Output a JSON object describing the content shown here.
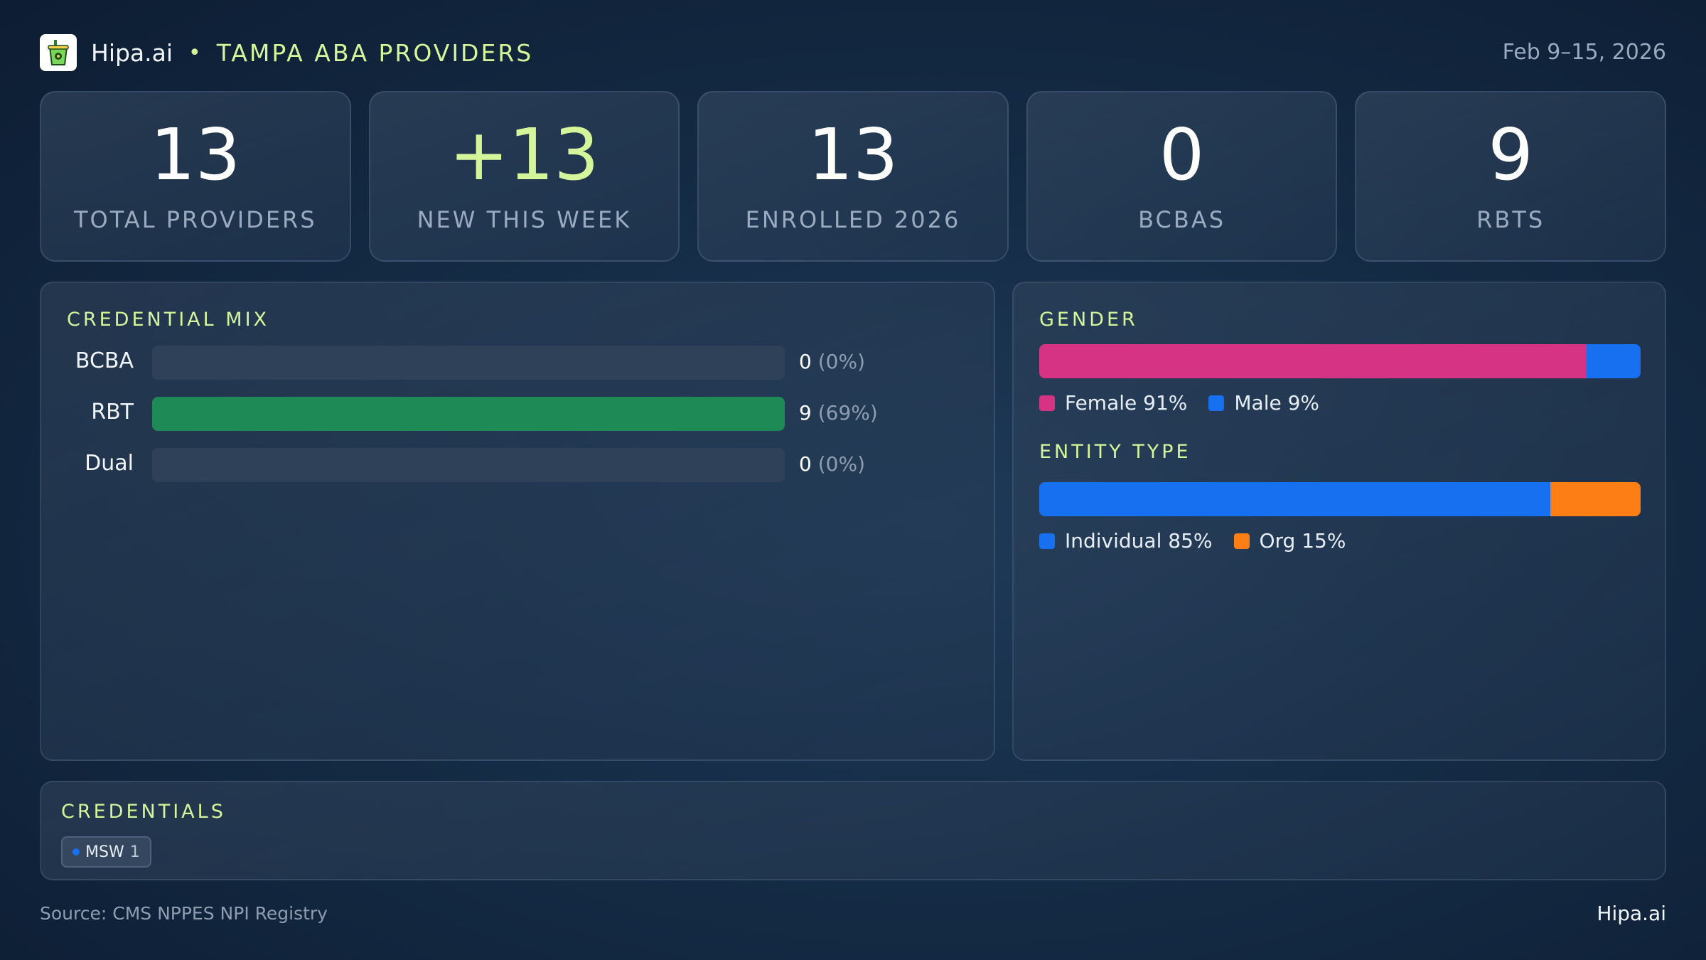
{
  "header": {
    "brand": "Hipa.ai",
    "separator": "•",
    "subtitle": "TAMPA ABA PROVIDERS",
    "date_range": "Feb 9–15, 2026",
    "logo_icon": "cup-icon"
  },
  "kpis": [
    {
      "value": "13",
      "label": "TOTAL PROVIDERS"
    },
    {
      "value": "+13",
      "label": "NEW THIS WEEK"
    },
    {
      "value": "13",
      "label": "ENROLLED 2026"
    },
    {
      "value": "0",
      "label": "BCBAS"
    },
    {
      "value": "9",
      "label": "RBTS"
    }
  ],
  "credential_mix": {
    "title": "CREDENTIAL MIX",
    "rows": [
      {
        "label": "BCBA",
        "count": "0",
        "pct": "(0%)",
        "fill": 0
      },
      {
        "label": "RBT",
        "count": "9",
        "pct": "(69%)",
        "fill": 1
      },
      {
        "label": "Dual",
        "count": "0",
        "pct": "(0%)",
        "fill": 0
      }
    ]
  },
  "gender": {
    "title": "GENDER",
    "segments": [
      {
        "label": "Female 91%",
        "share": 0.91,
        "color": "#d63384"
      },
      {
        "label": "Male 9%",
        "share": 0.09,
        "color": "#1670f0"
      }
    ]
  },
  "entity_type": {
    "title": "ENTITY TYPE",
    "segments": [
      {
        "label": "Individual 85%",
        "share": 0.85,
        "color": "#1670f0"
      },
      {
        "label": "Org 15%",
        "share": 0.15,
        "color": "#fd7e14"
      }
    ]
  },
  "credentials": {
    "title": "CREDENTIALS",
    "chips": [
      {
        "name": "MSW",
        "count": "1"
      }
    ]
  },
  "footer": {
    "source": "Source: CMS NPPES NPI Registry",
    "brand": "Hipa.ai"
  }
}
